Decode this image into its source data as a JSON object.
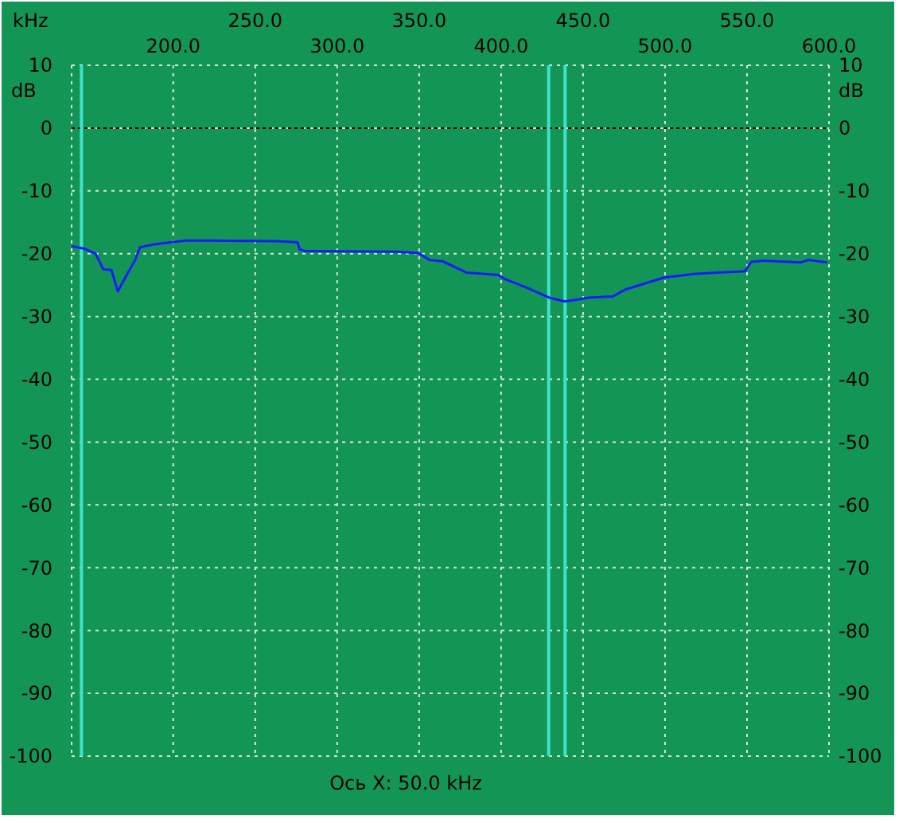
{
  "chart_data": {
    "type": "line",
    "xlabel": "kHz",
    "ylabel": "dB",
    "y2label": "dB",
    "annotations": [
      "Ось X: 50.0 kHz"
    ],
    "xlim": [
      138,
      600
    ],
    "xticks": [
      {
        "value": 200,
        "label": "200.0"
      },
      {
        "value": 300,
        "label": "300.0"
      },
      {
        "value": 400,
        "label": "400.0"
      },
      {
        "value": 500,
        "label": "500.0"
      },
      {
        "value": 600,
        "label": "600.0"
      }
    ],
    "x2lim": [
      138,
      600
    ],
    "x2ticks": [
      {
        "value": 250,
        "label": "250.0"
      },
      {
        "value": 350,
        "label": "350.0"
      },
      {
        "value": 450,
        "label": "450.0"
      },
      {
        "value": 550,
        "label": "550.0"
      }
    ],
    "ylim": [
      -100,
      10
    ],
    "yticks": [
      10,
      0,
      -10,
      -20,
      -30,
      -40,
      -50,
      -60,
      -70,
      -80,
      -90,
      -100
    ],
    "y2lim": [
      -100,
      10
    ],
    "y2ticks": [
      10,
      0,
      -10,
      -20,
      -30,
      -40,
      -50,
      -60,
      -70,
      -80,
      -90,
      -100
    ],
    "grid": true,
    "marker": "none",
    "line_style": "solid",
    "ref_lines": [
      {
        "axis": "y",
        "value": 0,
        "color": "#000000",
        "line_style": "dotted"
      },
      {
        "axis": "x",
        "value": 144,
        "color": "#40e0d0",
        "line_style": "solid"
      },
      {
        "axis": "x",
        "value": 429,
        "color": "#40e0d0",
        "line_style": "solid"
      },
      {
        "axis": "x",
        "value": 439,
        "color": "#40e0d0",
        "line_style": "solid"
      }
    ],
    "series": [
      {
        "color": "#1a1aff",
        "x": [
          138,
          145.8,
          152.6,
          157.4,
          162.3,
          166.2,
          172,
          176.8,
          179.7,
          188.5,
          198.2,
          207.9,
          264.2,
          275.9,
          277,
          280.7,
          337,
          349.7,
          356.4,
          364.2,
          378.8,
          398.2,
          402,
          414.7,
          429.3,
          439,
          453.5,
          468.1,
          475.9,
          499.2,
          518.6,
          548.7,
          552.6,
          560.3,
          582.7,
          587.6,
          599
        ],
        "values": [
          -18.8,
          -19.2,
          -20,
          -22.5,
          -22.6,
          -26,
          -23.2,
          -21,
          -19,
          -18.5,
          -18.2,
          -17.9,
          -18,
          -18.2,
          -19.3,
          -19.6,
          -19.7,
          -19.9,
          -21,
          -21.2,
          -23,
          -23.4,
          -24,
          -25.3,
          -27,
          -27.6,
          -27,
          -26.8,
          -25.7,
          -23.8,
          -23.2,
          -22.8,
          -21.3,
          -21.1,
          -21.4,
          -21,
          -21.4
        ]
      }
    ]
  }
}
